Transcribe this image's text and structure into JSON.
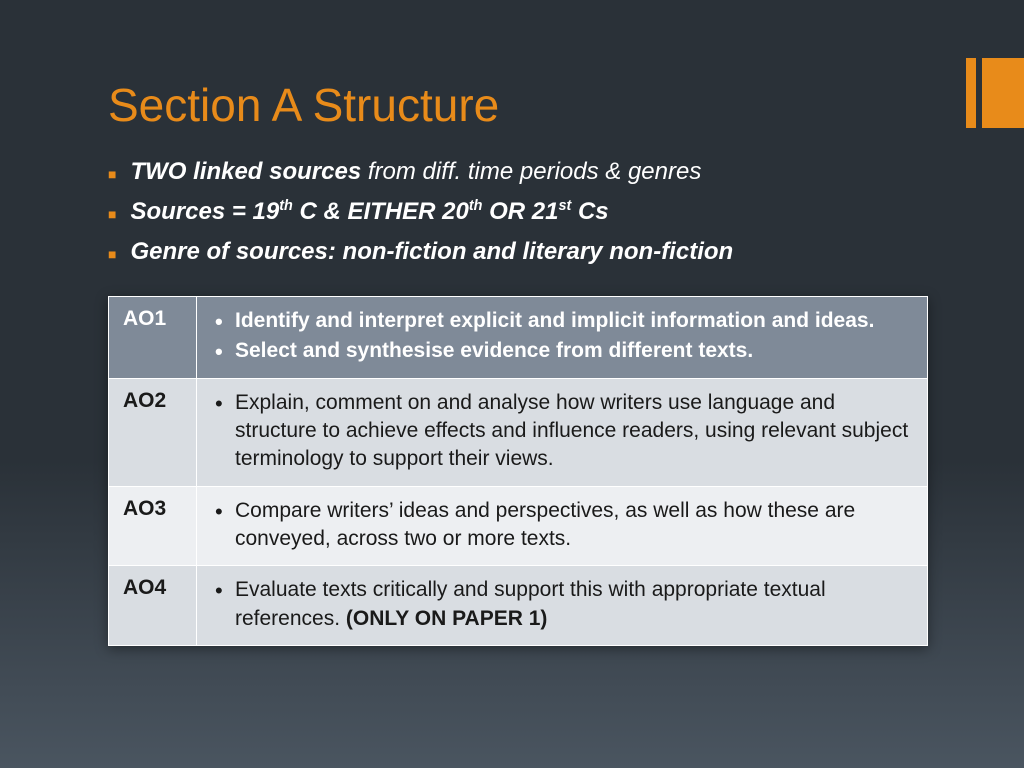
{
  "colors": {
    "accent": "#e88b1a",
    "title": "#e88b1a",
    "header_row_bg": "#7f8a98",
    "alt1_bg": "#d9dde2",
    "alt2_bg": "#edeff2",
    "text_light": "#ffffff",
    "text_dark": "#1a1a1a"
  },
  "title": "Section A Structure",
  "bullets": [
    {
      "bold_prefix": "TWO linked sources",
      "rest": " from diff. time periods & genres"
    },
    {
      "html": "Sources = 19<sup>th</sup> C & EITHER 20<sup>th</sup> OR 21<sup>st</sup> Cs",
      "all_bold": true
    },
    {
      "html": "Genre of sources:  non-fiction and literary non-fiction",
      "all_bold": true
    }
  ],
  "table": {
    "rows": [
      {
        "code": "AO1",
        "style": "header",
        "items": [
          "Identify and interpret explicit and implicit information and ideas.",
          "Select and synthesise evidence from different texts."
        ]
      },
      {
        "code": "AO2",
        "style": "alt1",
        "items": [
          "Explain, comment on and analyse how writers use language and structure to achieve effects and influence readers, using relevant subject terminology to support their views."
        ]
      },
      {
        "code": "AO3",
        "style": "alt2",
        "items": [
          "Compare writers’ ideas and perspectives, as well as how these are conveyed, across two or more texts."
        ]
      },
      {
        "code": "AO4",
        "style": "alt1",
        "items": [
          "Evaluate texts critically and support this with appropriate textual references. "
        ],
        "suffix_bold": "(ONLY ON PAPER 1)"
      }
    ]
  }
}
